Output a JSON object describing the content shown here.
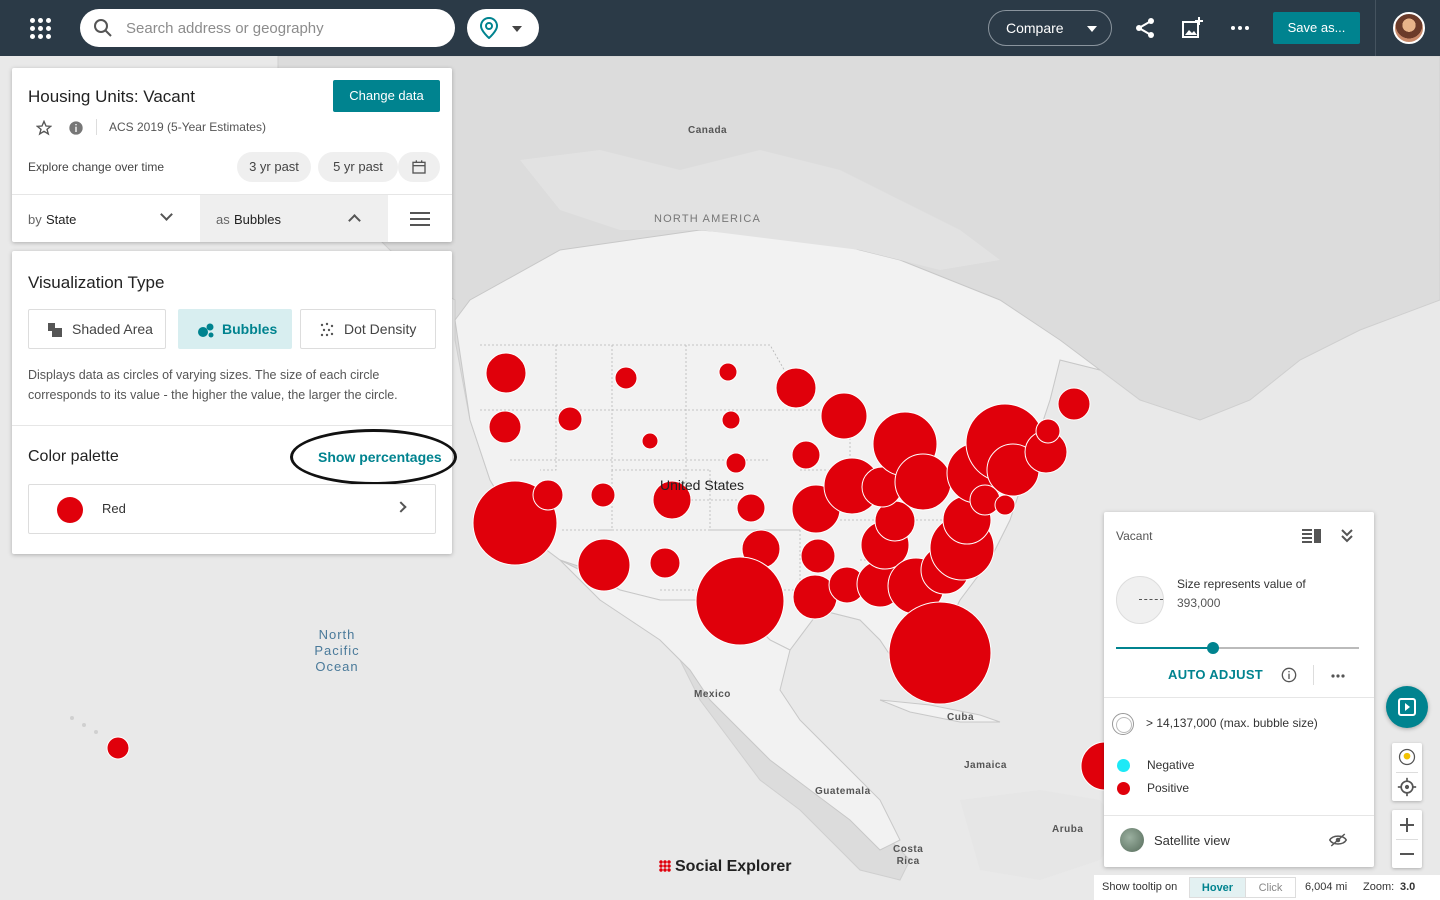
{
  "topbar": {
    "search_placeholder": "Search address or geography",
    "compare_label": "Compare",
    "save_label": "Save as..."
  },
  "data_panel": {
    "title": "Housing Units: Vacant",
    "change_data_label": "Change data",
    "survey": "ACS 2019 (5-Year Estimates)",
    "explore_label": "Explore change over time",
    "pill_3yr": "3 yr past",
    "pill_5yr": "5 yr past",
    "by_prefix": "by",
    "by_value": "State",
    "as_prefix": "as",
    "as_value": "Bubbles"
  },
  "viz_panel": {
    "heading": "Visualization Type",
    "options": [
      {
        "label": "Shaded Area",
        "active": false
      },
      {
        "label": "Bubbles",
        "active": true
      },
      {
        "label": "Dot Density",
        "active": false
      }
    ],
    "description": "Displays data as circles of varying sizes. The size of each circle corresponds to its value - the higher the value, the larger the circle.",
    "color_palette_heading": "Color palette",
    "show_percentages_label": "Show percentages",
    "palette_name": "Red",
    "palette_color": "#e0000b"
  },
  "map": {
    "labels": {
      "canada": "Canada",
      "north_america": "NORTH AMERICA",
      "united_states": "United States",
      "mexico": "Mexico",
      "cuba": "Cuba",
      "jamaica": "Jamaica",
      "guatemala": "Guatemala",
      "aruba": "Aruba",
      "costa_rica": "Costa\nRica",
      "ocean_1": "North",
      "ocean_2": "Pacific",
      "ocean_3": "Ocean"
    },
    "bubble_color": "#e0000b"
  },
  "legend": {
    "title": "Vacant",
    "size_represents": "Size represents value of",
    "size_value": "393,000",
    "slider_level": 0.4,
    "auto_adjust_label": "AUTO ADJUST",
    "max_label": "> 14,137,000 (max. bubble size)",
    "negative_label": "Negative",
    "negative_color": "#1de9f6",
    "positive_label": "Positive",
    "positive_color": "#e0000b",
    "satellite_label": "Satellite view"
  },
  "branding": {
    "logo_text": "Social Explorer"
  },
  "statusbar": {
    "tooltip_label": "Show tooltip on",
    "hover_label": "Hover",
    "click_label": "Click",
    "scale": "6,004 mi",
    "zoom_label": "Zoom:",
    "zoom_value": "3.0"
  }
}
